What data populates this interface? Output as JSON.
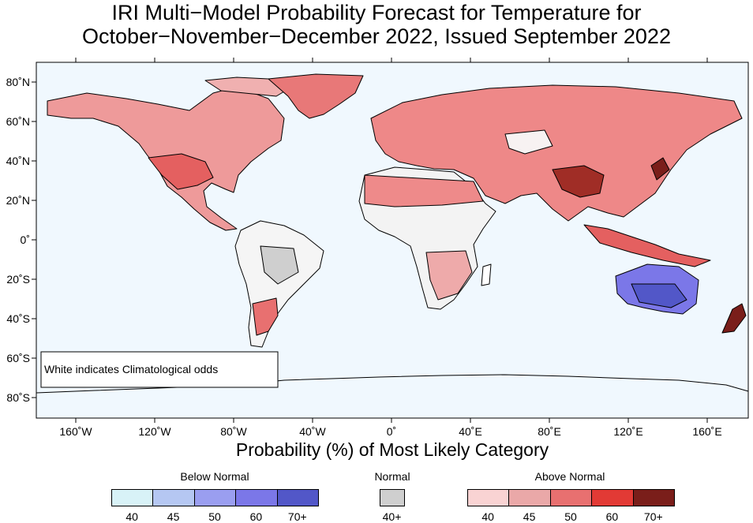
{
  "title": {
    "line1": "IRI Multi−Model Probability Forecast for Temperature for",
    "line2": "October−November−December 2022, Issued September 2022"
  },
  "map": {
    "lat_ticks": [
      "80˚N",
      "60˚N",
      "40˚N",
      "20˚N",
      "0˚",
      "20˚S",
      "40˚S",
      "60˚S",
      "80˚S"
    ],
    "lon_ticks": [
      "160˚W",
      "120˚W",
      "80˚W",
      "40˚W",
      "0˚",
      "40˚E",
      "80˚E",
      "120˚E",
      "160˚E"
    ],
    "note": "White indicates Climatological odds",
    "ocean_color": "#f0f8fe"
  },
  "subtitle": "Probability (%) of Most Likely Category",
  "legend": {
    "below": {
      "label": "Below Normal",
      "ticks": [
        "40",
        "45",
        "50",
        "60",
        "70+"
      ],
      "colors": [
        "#d8f2f7",
        "#b5c7f2",
        "#9a9ef0",
        "#7b77e8",
        "#5257c8"
      ]
    },
    "normal": {
      "label": "Normal",
      "ticks": [
        "40+"
      ],
      "colors": [
        "#cfcfcf"
      ]
    },
    "above": {
      "label": "Above Normal",
      "ticks": [
        "40",
        "45",
        "50",
        "60",
        "70+"
      ],
      "colors": [
        "#f9d3d3",
        "#eaa8a8",
        "#e87070",
        "#e23a35",
        "#7a1e1a"
      ]
    }
  }
}
